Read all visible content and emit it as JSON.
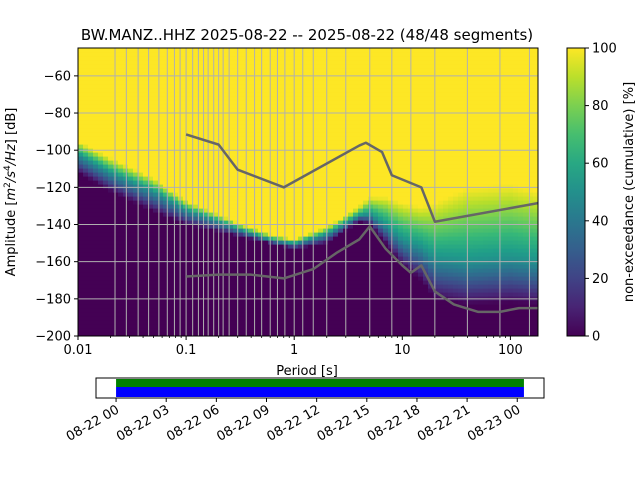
{
  "title": "BW.MANZ..HHZ   2025-08-22 -- 2025-08-22  (48/48 segments)",
  "chart_data": {
    "type": "heatmap",
    "title": "BW.MANZ..HHZ   2025-08-22 -- 2025-08-22  (48/48 segments)",
    "xlabel": "Period [s]",
    "ylabel_parts": [
      "Amplitude [",
      "m",
      "2",
      "/",
      "s",
      "4",
      "/",
      "Hz",
      "] [dB]"
    ],
    "xscale": "log",
    "xlim": [
      0.01,
      180
    ],
    "ylim": [
      -200,
      -45
    ],
    "x_ticks": [
      {
        "value": 0.01,
        "label": "0.01"
      },
      {
        "value": 0.1,
        "label": "0.1"
      },
      {
        "value": 1,
        "label": "1"
      },
      {
        "value": 10,
        "label": "10"
      },
      {
        "value": 100,
        "label": "100"
      }
    ],
    "y_ticks": [
      {
        "value": -60,
        "label": "−60"
      },
      {
        "value": -80,
        "label": "−80"
      },
      {
        "value": -100,
        "label": "−100"
      },
      {
        "value": -120,
        "label": "−120"
      },
      {
        "value": -140,
        "label": "−140"
      },
      {
        "value": -160,
        "label": "−160"
      },
      {
        "value": -180,
        "label": "−180"
      },
      {
        "value": -200,
        "label": "−200"
      }
    ],
    "grid": true,
    "period_grid_lines": [
      0.022,
      0.028,
      0.036,
      0.045,
      0.056,
      0.067,
      0.078,
      0.088,
      0.1,
      0.115,
      0.13,
      0.145,
      0.16,
      0.18,
      0.2,
      0.22,
      0.25,
      0.3,
      0.36,
      0.43,
      0.5,
      0.6,
      0.7,
      0.82,
      1.0,
      1.2,
      1.5,
      2.0,
      3.0,
      5.0,
      8.0,
      12.0,
      20.0,
      40.0,
      80.0,
      150.0
    ],
    "colorbar": {
      "label": "non-exceedance (cumulative) [%]",
      "range": [
        0,
        100
      ],
      "ticks": [
        {
          "value": 0,
          "label": "0"
        },
        {
          "value": 20,
          "label": "20"
        },
        {
          "value": 40,
          "label": "40"
        },
        {
          "value": 60,
          "label": "60"
        },
        {
          "value": 80,
          "label": "80"
        },
        {
          "value": 100,
          "label": "100"
        }
      ],
      "colormap": "viridis"
    },
    "distribution": {
      "p0": [
        [
          0.01,
          -112
        ],
        [
          0.02,
          -122
        ],
        [
          0.05,
          -133
        ],
        [
          0.1,
          -140
        ],
        [
          0.3,
          -146
        ],
        [
          0.6,
          -150
        ],
        [
          1,
          -153
        ],
        [
          2,
          -150
        ],
        [
          3,
          -143
        ],
        [
          4,
          -138
        ],
        [
          5,
          -140
        ],
        [
          7,
          -150
        ],
        [
          10,
          -162
        ],
        [
          15,
          -170
        ],
        [
          20,
          -180
        ],
        [
          40,
          -183
        ],
        [
          100,
          -182
        ],
        [
          180,
          -183
        ]
      ],
      "p50": [
        [
          0.01,
          -102
        ],
        [
          0.02,
          -112
        ],
        [
          0.05,
          -122
        ],
        [
          0.1,
          -132
        ],
        [
          0.3,
          -142
        ],
        [
          0.6,
          -148
        ],
        [
          1,
          -150
        ],
        [
          2,
          -145
        ],
        [
          3,
          -139
        ],
        [
          4,
          -135
        ],
        [
          5,
          -134
        ],
        [
          7,
          -140
        ],
        [
          10,
          -148
        ],
        [
          15,
          -152
        ],
        [
          20,
          -158
        ],
        [
          40,
          -160
        ],
        [
          100,
          -158
        ],
        [
          180,
          -160
        ]
      ],
      "p100": [
        [
          0.01,
          -95
        ],
        [
          0.02,
          -104
        ],
        [
          0.05,
          -115
        ],
        [
          0.1,
          -127
        ],
        [
          0.3,
          -139
        ],
        [
          0.6,
          -145
        ],
        [
          1,
          -148
        ],
        [
          2,
          -141
        ],
        [
          3,
          -135
        ],
        [
          4,
          -130
        ],
        [
          5,
          -125
        ],
        [
          7,
          -125
        ],
        [
          10,
          -128
        ],
        [
          15,
          -130
        ],
        [
          20,
          -128
        ],
        [
          40,
          -120
        ],
        [
          100,
          -118
        ],
        [
          180,
          -122
        ]
      ]
    },
    "series": [
      {
        "name": "",
        "color": "#666666",
        "points": [
          [
            0.1,
            -91.5
          ],
          [
            0.2,
            -97
          ],
          [
            0.3,
            -110.5
          ],
          [
            0.8,
            -120
          ],
          [
            4,
            -97.5
          ],
          [
            4.6,
            -96
          ],
          [
            6.5,
            -101
          ],
          [
            8,
            -113.5
          ],
          [
            15,
            -120
          ],
          [
            20,
            -138.5
          ],
          [
            180,
            -128.5
          ]
        ]
      },
      {
        "name": "",
        "color": "#666666",
        "points": [
          [
            0.1,
            -168
          ],
          [
            0.2,
            -167
          ],
          [
            0.4,
            -167
          ],
          [
            0.8,
            -169
          ],
          [
            1.5,
            -164
          ],
          [
            2.5,
            -155
          ],
          [
            4,
            -148
          ],
          [
            5,
            -141
          ],
          [
            7,
            -153
          ],
          [
            10,
            -162
          ],
          [
            12,
            -166
          ],
          [
            15,
            -162
          ],
          [
            20,
            -176
          ],
          [
            30,
            -183
          ],
          [
            50,
            -187
          ],
          [
            80,
            -187
          ],
          [
            120,
            -185
          ],
          [
            180,
            -185
          ]
        ]
      }
    ]
  },
  "timeline": {
    "tick_labels": [
      "08-22 00",
      "08-22 03",
      "08-22 06",
      "08-22 09",
      "08-22 12",
      "08-22 15",
      "08-22 18",
      "08-22 21",
      "08-23 00"
    ],
    "tick_hours": [
      0,
      3,
      6,
      9,
      12,
      15,
      18,
      21,
      24
    ],
    "range_hours": [
      -1.2,
      25.6
    ],
    "coverage_hours": [
      0,
      24.4
    ],
    "coverage_colors": {
      "top": "#008000",
      "bottom": "#0000ff"
    }
  }
}
